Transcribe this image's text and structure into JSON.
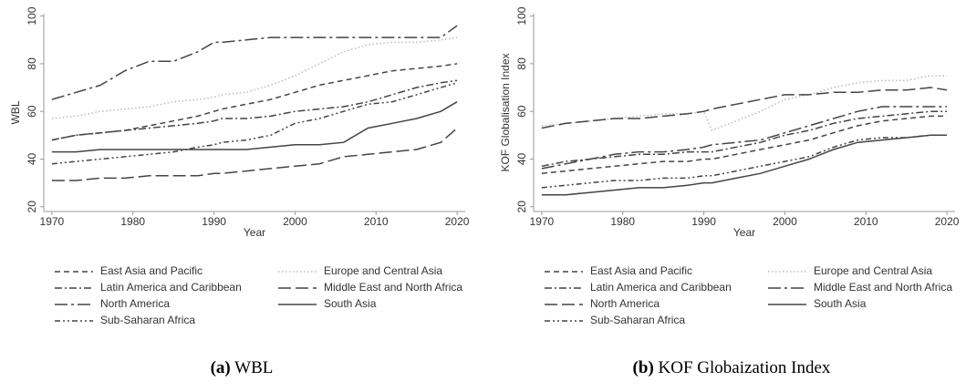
{
  "chart_data": [
    {
      "type": "line",
      "ylabel": "WBL",
      "xlabel": "Year",
      "caption_label": "(a)",
      "caption": "WBL",
      "x": [
        1970,
        1973,
        1976,
        1979,
        1982,
        1985,
        1988,
        1990,
        1991,
        1994,
        1997,
        2000,
        2003,
        2006,
        2009,
        2012,
        2015,
        2018,
        2020
      ],
      "xlim": [
        1969,
        2021
      ],
      "xticks": [
        1970,
        1980,
        1990,
        2000,
        2010,
        2020
      ],
      "ylim": [
        18,
        101
      ],
      "yticks": [
        20,
        40,
        60,
        80,
        100
      ],
      "series": [
        {
          "name": "East Asia and Pacific",
          "color": "#444444",
          "style": "dash",
          "values": [
            48,
            50,
            51,
            52,
            54,
            56,
            58,
            60,
            61,
            63,
            65,
            68,
            71,
            73,
            75,
            77,
            78,
            79,
            80
          ]
        },
        {
          "name": "Europe and Central Asia",
          "color": "#bbbbbb",
          "style": "dot",
          "values": [
            57,
            58,
            60,
            61,
            62,
            64,
            65,
            66,
            67,
            68,
            71,
            75,
            80,
            85,
            88,
            89,
            89,
            90,
            91
          ]
        },
        {
          "name": "Latin America and Caribbean",
          "color": "#444444",
          "style": "dashdot",
          "values": [
            48,
            50,
            51,
            52,
            53,
            54,
            55,
            56,
            57,
            57,
            58,
            60,
            61,
            62,
            64,
            67,
            70,
            72,
            73
          ]
        },
        {
          "name": "Middle East and North Africa",
          "color": "#444444",
          "style": "longdash",
          "values": [
            31,
            31,
            32,
            32,
            33,
            33,
            33,
            34,
            34,
            35,
            36,
            37,
            38,
            41,
            42,
            43,
            44,
            47,
            53
          ]
        },
        {
          "name": "North America",
          "color": "#444444",
          "style": "longdashdot",
          "values": [
            65,
            68,
            71,
            77,
            81,
            81,
            85,
            89,
            89,
            90,
            91,
            91,
            91,
            91,
            91,
            91,
            91,
            91,
            96
          ]
        },
        {
          "name": "South Asia",
          "color": "#444444",
          "style": "solid",
          "values": [
            43,
            43,
            44,
            44,
            44,
            44,
            44,
            44,
            44,
            44,
            45,
            46,
            46,
            47,
            53,
            55,
            57,
            60,
            64
          ]
        },
        {
          "name": "Sub-Saharan Africa",
          "color": "#444444",
          "style": "dashdotdot",
          "values": [
            38,
            39,
            40,
            41,
            42,
            43,
            45,
            46,
            47,
            48,
            50,
            55,
            57,
            60,
            63,
            64,
            67,
            70,
            72
          ]
        }
      ]
    },
    {
      "type": "line",
      "ylabel": "KOF Globalisation Index",
      "xlabel": "Year",
      "caption_label": "(b)",
      "caption": "KOF Globaization Index",
      "x": [
        1970,
        1973,
        1976,
        1979,
        1982,
        1985,
        1988,
        1990,
        1991,
        1994,
        1997,
        2000,
        2003,
        2006,
        2009,
        2012,
        2015,
        2018,
        2020
      ],
      "xlim": [
        1969,
        2021
      ],
      "xticks": [
        1970,
        1980,
        1990,
        2000,
        2010,
        2020
      ],
      "ylim": [
        18,
        101
      ],
      "yticks": [
        20,
        40,
        60,
        80,
        100
      ],
      "series": [
        {
          "name": "East Asia and Pacific",
          "color": "#444444",
          "style": "dash",
          "values": [
            34,
            35,
            36,
            37,
            38,
            39,
            39,
            40,
            40,
            42,
            44,
            46,
            48,
            51,
            54,
            56,
            57,
            58,
            58
          ]
        },
        {
          "name": "Europe and Central Asia",
          "color": "#bbbbbb",
          "style": "dot",
          "values": [
            54,
            55,
            56,
            57,
            58,
            59,
            59,
            60,
            52,
            56,
            60,
            65,
            67,
            70,
            72,
            73,
            73,
            75,
            75
          ]
        },
        {
          "name": "Latin America and Caribbean",
          "color": "#444444",
          "style": "dashdot",
          "values": [
            37,
            39,
            40,
            41,
            42,
            42,
            43,
            43,
            43,
            45,
            47,
            50,
            52,
            55,
            57,
            58,
            59,
            60,
            60
          ]
        },
        {
          "name": "Middle East and North Africa",
          "color": "#444444",
          "style": "longdashdot",
          "values": [
            36,
            38,
            40,
            42,
            43,
            43,
            44,
            45,
            46,
            47,
            48,
            51,
            54,
            57,
            60,
            62,
            62,
            62,
            62
          ]
        },
        {
          "name": "North America",
          "color": "#444444",
          "style": "longdash",
          "values": [
            53,
            55,
            56,
            57,
            57,
            58,
            59,
            60,
            61,
            63,
            65,
            67,
            67,
            68,
            68,
            69,
            69,
            70,
            69
          ]
        },
        {
          "name": "South Asia",
          "color": "#444444",
          "style": "solid",
          "values": [
            25,
            25,
            26,
            27,
            28,
            28,
            29,
            30,
            30,
            32,
            34,
            37,
            40,
            44,
            47,
            48,
            49,
            50,
            50
          ]
        },
        {
          "name": "Sub-Saharan Africa",
          "color": "#444444",
          "style": "dashdotdot",
          "values": [
            28,
            29,
            30,
            31,
            31,
            32,
            32,
            33,
            33,
            35,
            37,
            39,
            41,
            45,
            48,
            49,
            49,
            50,
            50
          ]
        }
      ]
    }
  ]
}
